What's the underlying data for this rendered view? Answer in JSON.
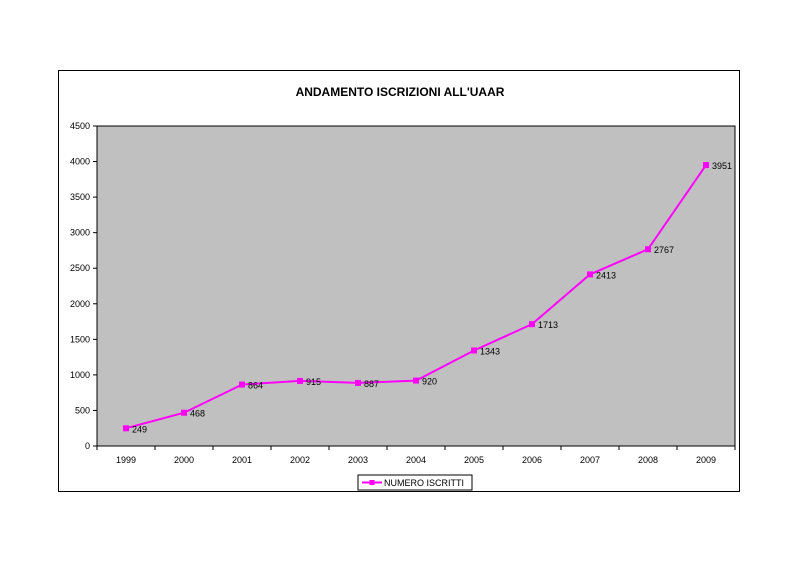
{
  "chart_data": {
    "type": "line",
    "title": "ANDAMENTO ISCRIZIONI ALL'UAAR",
    "xlabel": "",
    "ylabel": "",
    "categories": [
      "1999",
      "2000",
      "2001",
      "2002",
      "2003",
      "2004",
      "2005",
      "2006",
      "2007",
      "2008",
      "2009"
    ],
    "series": [
      {
        "name": "NUMERO ISCRITTI",
        "values": [
          249,
          468,
          864,
          915,
          887,
          920,
          1343,
          1713,
          2413,
          2767,
          3951
        ],
        "color": "#ff00ff"
      }
    ],
    "ylim": [
      0,
      4500
    ],
    "yticks": [
      0,
      500,
      1000,
      1500,
      2000,
      2500,
      3000,
      3500,
      4000,
      4500
    ],
    "plot_background": "#c0c0c0",
    "grid": false,
    "legend_position": "bottom"
  }
}
